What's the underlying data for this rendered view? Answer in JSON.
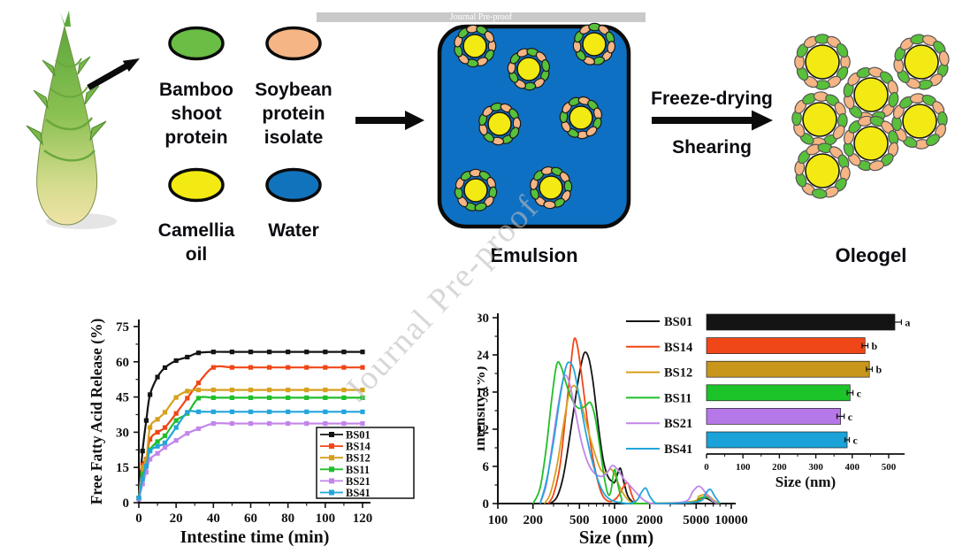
{
  "banner": {
    "text": "Journal Pre-proof"
  },
  "watermark": {
    "text": "Journal Pre-proof"
  },
  "schematic": {
    "bamboo_label": "Bamboo\nshoot\nprotein",
    "soybean_label": "Soybean\nprotein\nisolate",
    "camellia_label": "Camellia\noil",
    "water_label": "Water",
    "emulsion_label": "Emulsion",
    "freeze_label": "Freeze-drying",
    "shearing_label": "Shearing",
    "oleogel_label": "Oleogel",
    "colors": {
      "bamboo_protein": "#6abd45",
      "soybean_protein": "#f5b584",
      "camellia_oil": "#f2ea12",
      "water": "#1273bd",
      "emulsion_bg": "#0e70c2",
      "droplet_green": "#58c03a",
      "droplet_salmon": "#f5b584",
      "droplet_oil": "#f2ea12"
    }
  },
  "chart_data": [
    {
      "type": "line",
      "title": "",
      "xlabel": "Intestine time (min)",
      "ylabel": "Free Fatty Acid Release (%)",
      "xlim": [
        0,
        120
      ],
      "ylim": [
        0,
        75
      ],
      "xticks": [
        0,
        20,
        40,
        60,
        80,
        100,
        120
      ],
      "yticks": [
        0,
        15,
        30,
        45,
        60,
        75
      ],
      "grid": false,
      "legend_position": "lower right",
      "marker": "square",
      "x": [
        0,
        2,
        4,
        6,
        10,
        14,
        20,
        26,
        32,
        40,
        50,
        60,
        70,
        80,
        90,
        100,
        110,
        120
      ],
      "series": [
        {
          "name": "BS01",
          "color": "#141414",
          "values": [
            2,
            22,
            35,
            46,
            53.5,
            57.5,
            60.5,
            62,
            63.8,
            64.2,
            64.2,
            64.2,
            64.2,
            64.2,
            64.2,
            64.2,
            64.2,
            64.2
          ]
        },
        {
          "name": "BS14",
          "color": "#f04718",
          "values": [
            2,
            16,
            18.5,
            27,
            30,
            32,
            38,
            44.5,
            51,
            57.6,
            57.6,
            57.6,
            57.6,
            57.6,
            57.6,
            57.6,
            57.6,
            57.6
          ]
        },
        {
          "name": "BS12",
          "color": "#d6a01d",
          "values": [
            2,
            15,
            18,
            32,
            35.5,
            38.5,
            44.8,
            47.5,
            48,
            48,
            48,
            48,
            48,
            48,
            48,
            48,
            48,
            48
          ]
        },
        {
          "name": "BS11",
          "color": "#20bf2b",
          "values": [
            2,
            12,
            15.5,
            22.5,
            26,
            28.5,
            35,
            38,
            44.5,
            44.7,
            44.7,
            44.7,
            44.7,
            44.7,
            44.7,
            44.7,
            44.7,
            44.7
          ]
        },
        {
          "name": "BS21",
          "color": "#c285ea",
          "values": [
            1.5,
            8,
            13,
            18.5,
            21,
            23.5,
            26.5,
            29.5,
            31.5,
            33.7,
            33.7,
            33.7,
            33.7,
            33.7,
            33.7,
            33.7,
            33.7,
            33.7
          ]
        },
        {
          "name": "BS41",
          "color": "#23a5dc",
          "values": [
            2,
            10,
            15.5,
            22,
            24,
            25.5,
            32,
            38.5,
            38.7,
            38.7,
            38.7,
            38.7,
            38.7,
            38.7,
            38.7,
            38.7,
            38.7,
            38.7
          ]
        }
      ]
    },
    {
      "type": "line",
      "title": "",
      "xlabel": "Size (nm)",
      "ylabel": "Intensity (%)",
      "xscale": "log",
      "xlim": [
        100,
        10000
      ],
      "ylim": [
        0,
        30
      ],
      "xticks": [
        100,
        200,
        500,
        1000,
        2000,
        5000,
        10000
      ],
      "yticks": [
        0,
        6,
        12,
        18,
        24,
        30
      ],
      "grid": false,
      "legend_position": "right of plot",
      "series": [
        {
          "name": "BS01",
          "color": "#141414",
          "points": [
            [
              280,
              0
            ],
            [
              320,
              1
            ],
            [
              360,
              4
            ],
            [
              400,
              9
            ],
            [
              450,
              15.5
            ],
            [
              500,
              21
            ],
            [
              550,
              24.3
            ],
            [
              600,
              23.5
            ],
            [
              650,
              20
            ],
            [
              700,
              15
            ],
            [
              750,
              10.5
            ],
            [
              800,
              7
            ],
            [
              850,
              5
            ],
            [
              900,
              4
            ],
            [
              950,
              3.6
            ],
            [
              1000,
              3.4
            ],
            [
              1050,
              4.5
            ],
            [
              1120,
              5.7
            ],
            [
              1200,
              3.5
            ],
            [
              1300,
              1.2
            ],
            [
              1450,
              0.2
            ],
            [
              1600,
              0
            ],
            [
              4500,
              0
            ],
            [
              5200,
              0.7
            ],
            [
              6000,
              0.9
            ],
            [
              6800,
              0.4
            ],
            [
              7500,
              0
            ]
          ]
        },
        {
          "name": "BS14",
          "color": "#f04718",
          "points": [
            [
              270,
              0
            ],
            [
              300,
              1.5
            ],
            [
              340,
              6
            ],
            [
              380,
              14
            ],
            [
              420,
              22
            ],
            [
              450,
              26.5
            ],
            [
              480,
              25.5
            ],
            [
              520,
              21
            ],
            [
              570,
              15
            ],
            [
              630,
              9
            ],
            [
              700,
              4.5
            ],
            [
              780,
              1.5
            ],
            [
              880,
              0.4
            ],
            [
              1000,
              0.6
            ],
            [
              1100,
              1.5
            ],
            [
              1200,
              2.8
            ],
            [
              1300,
              3.3
            ],
            [
              1400,
              1.5
            ],
            [
              1500,
              0.3
            ],
            [
              1700,
              0
            ],
            [
              4800,
              0.2
            ],
            [
              5500,
              0.9
            ],
            [
              6300,
              1.1
            ],
            [
              7000,
              0.5
            ],
            [
              7800,
              0
            ]
          ]
        },
        {
          "name": "BS12",
          "color": "#d6a01d",
          "points": [
            [
              250,
              0
            ],
            [
              280,
              1.5
            ],
            [
              320,
              6
            ],
            [
              360,
              12
            ],
            [
              400,
              17
            ],
            [
              440,
              19
            ],
            [
              480,
              18.3
            ],
            [
              530,
              15.5
            ],
            [
              600,
              11.5
            ],
            [
              680,
              8
            ],
            [
              760,
              5.5
            ],
            [
              850,
              5
            ],
            [
              920,
              5.6
            ],
            [
              1000,
              4.8
            ],
            [
              1100,
              2.8
            ],
            [
              1250,
              1
            ],
            [
              1400,
              0.2
            ],
            [
              1600,
              0
            ],
            [
              4500,
              0.3
            ],
            [
              5300,
              1.2
            ],
            [
              6200,
              1.4
            ],
            [
              7000,
              0.6
            ],
            [
              7800,
              0
            ]
          ]
        },
        {
          "name": "BS11",
          "color": "#20bf2b",
          "points": [
            [
              200,
              0
            ],
            [
              230,
              2.5
            ],
            [
              260,
              9
            ],
            [
              290,
              17
            ],
            [
              320,
              22.5
            ],
            [
              350,
              22
            ],
            [
              390,
              19
            ],
            [
              440,
              16.5
            ],
            [
              490,
              15.4
            ],
            [
              560,
              15.7
            ],
            [
              620,
              16.3
            ],
            [
              680,
              14
            ],
            [
              750,
              9
            ],
            [
              820,
              4
            ],
            [
              880,
              1.5
            ],
            [
              930,
              2
            ],
            [
              1000,
              5.5
            ],
            [
              1070,
              3
            ],
            [
              1150,
              0.8
            ],
            [
              1300,
              0
            ],
            [
              4600,
              0.2
            ],
            [
              5400,
              0.9
            ],
            [
              6200,
              1
            ],
            [
              7000,
              0.4
            ],
            [
              7700,
              0
            ]
          ]
        },
        {
          "name": "BS21",
          "color": "#c285ea",
          "points": [
            [
              230,
              0
            ],
            [
              260,
              3
            ],
            [
              290,
              9
            ],
            [
              330,
              16
            ],
            [
              370,
              20.5
            ],
            [
              410,
              19.5
            ],
            [
              460,
              15
            ],
            [
              520,
              10
            ],
            [
              580,
              7
            ],
            [
              650,
              5.2
            ],
            [
              750,
              4.4
            ],
            [
              850,
              4.8
            ],
            [
              950,
              6.1
            ],
            [
              1050,
              5.6
            ],
            [
              1200,
              4
            ],
            [
              1400,
              2.6
            ],
            [
              1600,
              1.4
            ],
            [
              1800,
              0.5
            ],
            [
              2000,
              0.1
            ],
            [
              2200,
              0
            ],
            [
              4000,
              0.3
            ],
            [
              4700,
              2
            ],
            [
              5300,
              2.8
            ],
            [
              6000,
              1.8
            ],
            [
              6800,
              0.6
            ],
            [
              7500,
              0
            ]
          ]
        },
        {
          "name": "BS41",
          "color": "#23a5dc",
          "points": [
            [
              230,
              0
            ],
            [
              260,
              3.5
            ],
            [
              300,
              10
            ],
            [
              340,
              17
            ],
            [
              380,
              21.8
            ],
            [
              410,
              22.8
            ],
            [
              450,
              21.5
            ],
            [
              500,
              17
            ],
            [
              560,
              12
            ],
            [
              630,
              7.5
            ],
            [
              720,
              3.8
            ],
            [
              820,
              1.5
            ],
            [
              950,
              0.5
            ],
            [
              1100,
              0.2
            ],
            [
              1300,
              0
            ],
            [
              1550,
              0.5
            ],
            [
              1700,
              1.8
            ],
            [
              1850,
              2.5
            ],
            [
              2000,
              1.2
            ],
            [
              2200,
              0.2
            ],
            [
              2400,
              0
            ],
            [
              5200,
              0.3
            ],
            [
              6000,
              1.6
            ],
            [
              6600,
              2.3
            ],
            [
              7200,
              1.2
            ],
            [
              8000,
              0
            ]
          ]
        }
      ]
    },
    {
      "type": "bar",
      "orientation": "horizontal",
      "title": "",
      "xlabel": "Size (nm)",
      "xlim": [
        0,
        560
      ],
      "xticks": [
        0,
        100,
        200,
        300,
        400,
        500
      ],
      "categories": [
        "BS01",
        "BS14",
        "BS12",
        "BS11",
        "BS21",
        "BS41"
      ],
      "values": [
        517,
        435,
        447,
        394,
        368,
        386
      ],
      "errors": [
        18,
        8,
        8,
        8,
        10,
        6
      ],
      "sig_labels": [
        "a",
        "b",
        "b",
        "c",
        "c",
        "c"
      ],
      "colors": [
        "#141414",
        "#f04718",
        "#c8961b",
        "#1cc429",
        "#b678e8",
        "#1ba2d8"
      ]
    }
  ]
}
